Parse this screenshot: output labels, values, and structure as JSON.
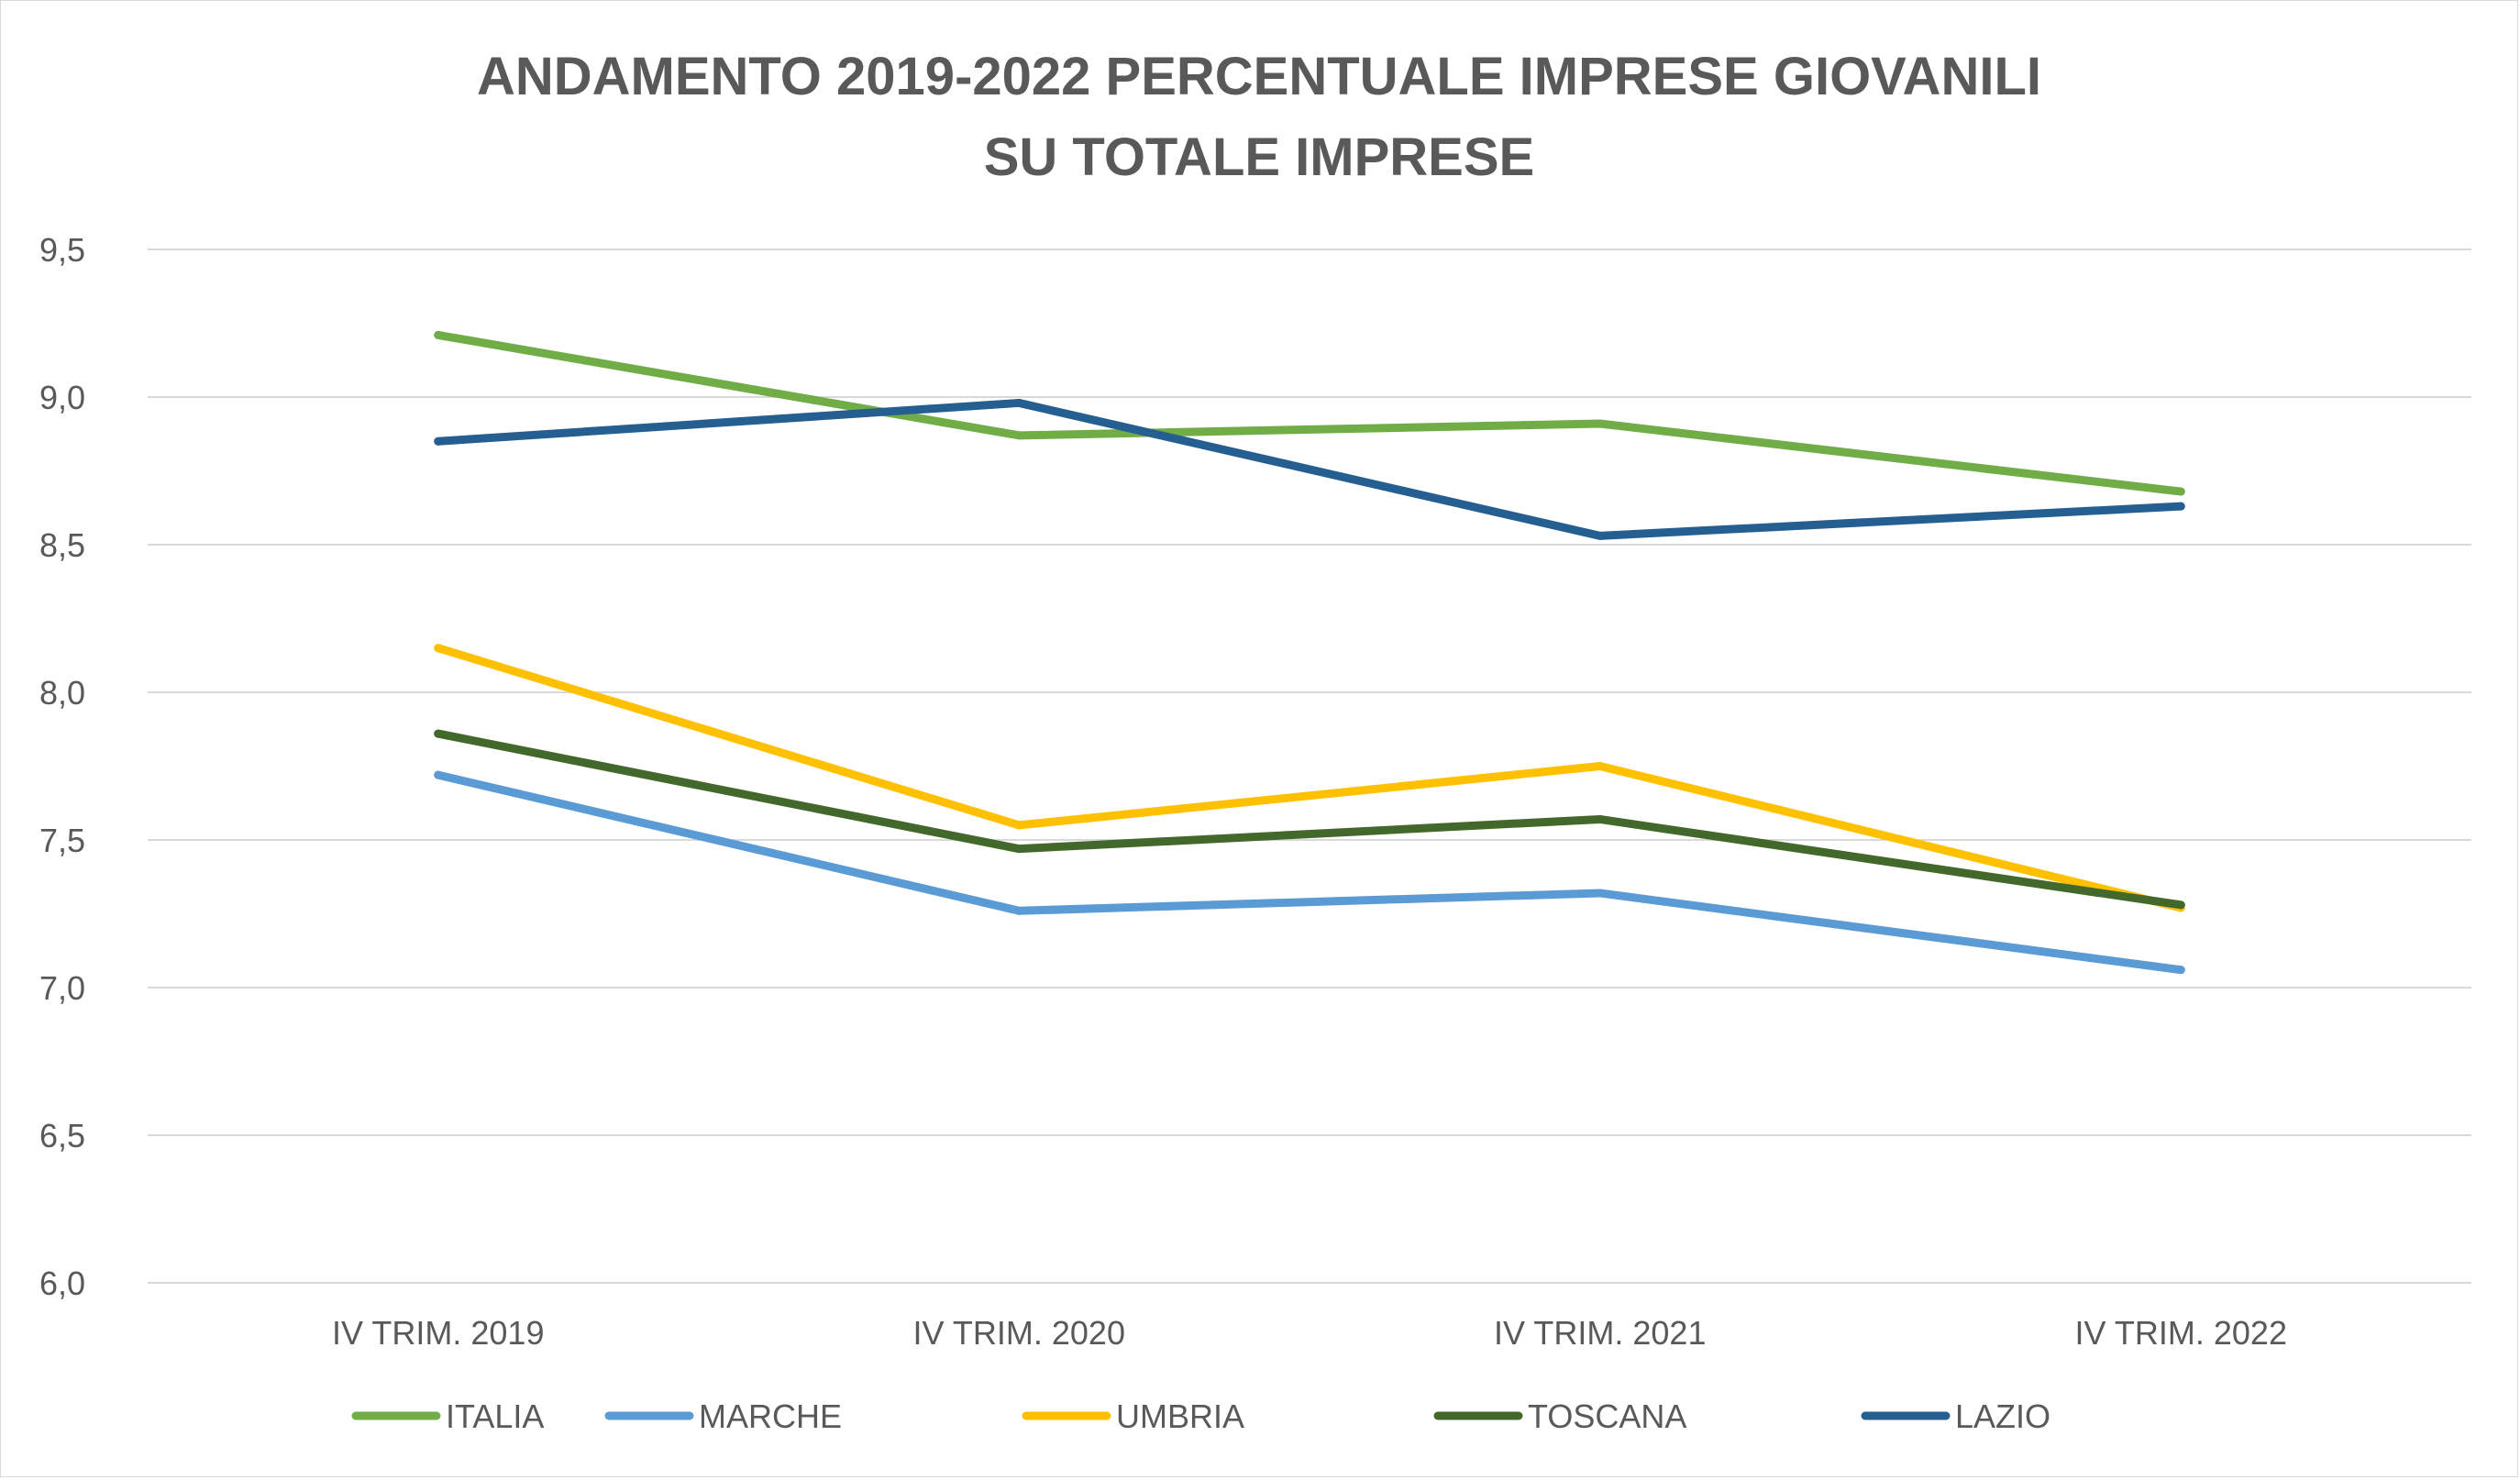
{
  "chart_data": {
    "type": "line",
    "title_lines": [
      "ANDAMENTO 2019-2022 PERCENTUALE IMPRESE GIOVANILI",
      "SU TOTALE IMPRESE"
    ],
    "categories": [
      "IV TRIM. 2019",
      "IV TRIM. 2020",
      "IV TRIM. 2021",
      "IV TRIM. 2022"
    ],
    "ylim": [
      6.0,
      9.5
    ],
    "yticks": [
      "6,0",
      "6,5",
      "7,0",
      "7,5",
      "8,0",
      "8,5",
      "9,0",
      "9,5"
    ],
    "ytick_values": [
      6.0,
      6.5,
      7.0,
      7.5,
      8.0,
      8.5,
      9.0,
      9.5
    ],
    "grid": true,
    "legend_position": "bottom",
    "series": [
      {
        "name": "ITALIA",
        "color": "#70ad47",
        "values": [
          9.21,
          8.87,
          8.91,
          8.68
        ]
      },
      {
        "name": "MARCHE",
        "color": "#5b9bd5",
        "values": [
          7.72,
          7.26,
          7.32,
          7.06
        ]
      },
      {
        "name": "UMBRIA",
        "color": "#ffc000",
        "values": [
          8.15,
          7.55,
          7.75,
          7.27
        ]
      },
      {
        "name": "TOSCANA",
        "color": "#43682b",
        "values": [
          7.86,
          7.47,
          7.57,
          7.28
        ]
      },
      {
        "name": "LAZIO",
        "color": "#255e91",
        "values": [
          8.85,
          8.98,
          8.53,
          8.63
        ]
      }
    ]
  }
}
